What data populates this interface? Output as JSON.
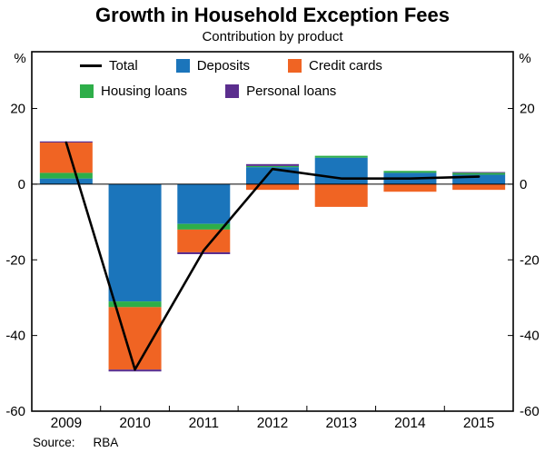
{
  "chart_data": {
    "type": "bar",
    "subtype": "stacked-bars-with-total-line",
    "title": "Growth in Household Exception Fees",
    "subtitle": "Contribution by product",
    "categories": [
      "2009",
      "2010",
      "2011",
      "2012",
      "2013",
      "2014",
      "2015"
    ],
    "series": [
      {
        "name": "Deposits",
        "color": "#1B75BB",
        "values": [
          1.5,
          -31.0,
          -10.5,
          4.5,
          7.0,
          3.0,
          2.5
        ]
      },
      {
        "name": "Housing loans",
        "color": "#2EAE49",
        "values": [
          1.5,
          -1.5,
          -1.5,
          0.3,
          0.5,
          0.5,
          0.5
        ]
      },
      {
        "name": "Credit cards",
        "color": "#F06423",
        "values": [
          8.0,
          -16.5,
          -6.0,
          -1.5,
          -6.0,
          -2.0,
          -1.5
        ]
      },
      {
        "name": "Personal loans",
        "color": "#5B2E8E",
        "values": [
          0.3,
          -0.5,
          -0.5,
          0.5,
          0.0,
          0.0,
          0.2
        ]
      }
    ],
    "line_series": {
      "name": "Total",
      "color": "#000000",
      "values": [
        11.0,
        -49.0,
        -17.5,
        4.0,
        1.5,
        1.5,
        2.0
      ]
    },
    "ylabel_left": "%",
    "ylabel_right": "%",
    "ylim": [
      -60,
      35
    ],
    "yticks": [
      20,
      0,
      -20,
      -40,
      -60
    ],
    "grid": "none",
    "legend_position": "top-inside",
    "legend": [
      {
        "label": "Total",
        "swatch": "line",
        "color": "#000000",
        "row": 1
      },
      {
        "label": "Deposits",
        "swatch": "square",
        "color": "#1B75BB",
        "row": 1
      },
      {
        "label": "Credit cards",
        "swatch": "square",
        "color": "#F06423",
        "row": 1
      },
      {
        "label": "Housing loans",
        "swatch": "square",
        "color": "#2EAE49",
        "row": 2
      },
      {
        "label": "Personal loans",
        "swatch": "square",
        "color": "#5B2E8E",
        "row": 2
      }
    ]
  },
  "footer": {
    "source_label": "Source:",
    "source_value": "RBA"
  }
}
